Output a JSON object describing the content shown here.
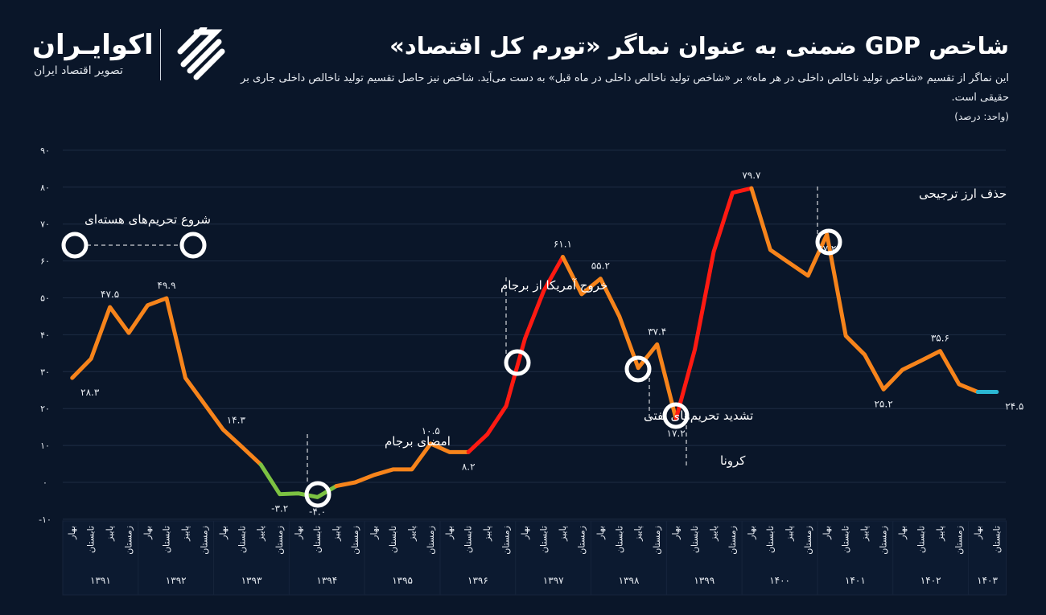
{
  "header": {
    "title": "شاخص GDP ضمنی به عنوان نماگر «تورم کل اقتصاد»",
    "description": "این نماگر از تقسیم «شاخص تولید ناخالص داخلی در هر ماه» بر «شاخص تولید ناخالص داخلی در ماه قبل» به دست می‌آید. شاخص نیز حاصل تقسیم تولید ناخالص داخلی جاری بر حقیقی است.",
    "unit": "(واحد: درصد)"
  },
  "logo": {
    "name": "اکوایـران",
    "tagline": "تصویر اقتصاد ایران"
  },
  "colors": {
    "background": "#0a1629",
    "orange": "#f7841b",
    "red": "#ff1a12",
    "green": "#7cc242",
    "cyan": "#2bb7d3",
    "grid": "#1e2c44"
  },
  "chart_data": {
    "type": "line",
    "title": "شاخص GDP ضمنی به عنوان نماگر «تورم کل اقتصاد»",
    "ylabel": "",
    "xlabel": "",
    "ylim": [
      -10,
      90
    ],
    "yticks": [
      -10,
      0,
      10,
      20,
      30,
      40,
      50,
      60,
      70,
      80,
      90
    ],
    "ytick_labels": [
      "-۱۰",
      "۰",
      "۱۰",
      "۲۰",
      "۳۰",
      "۴۰",
      "۵۰",
      "۶۰",
      "۷۰",
      "۸۰",
      "۹۰"
    ],
    "grid": true,
    "quarters": [
      "بهار",
      "تابستان",
      "پاییز",
      "زمستان"
    ],
    "years": [
      "۱۳۹۱",
      "۱۳۹۲",
      "۱۳۹۳",
      "۱۳۹۴",
      "۱۳۹۵",
      "۱۳۹۶",
      "۱۳۹۷",
      "۱۳۹۸",
      "۱۳۹۹",
      "۱۴۰۰",
      "۱۴۰۱",
      "۱۴۰۲",
      "۱۴۰۳"
    ],
    "quarters_per_year": [
      4,
      4,
      4,
      4,
      4,
      4,
      4,
      4,
      4,
      4,
      4,
      4,
      2
    ],
    "values": [
      28.3,
      33.5,
      47.5,
      40.5,
      48.0,
      49.9,
      28.3,
      21.3,
      14.3,
      9.6,
      4.8,
      -3.2,
      -3.0,
      -4.0,
      -1.0,
      0.0,
      2.0,
      3.5,
      3.5,
      10.5,
      8.2,
      8.2,
      13.0,
      20.7,
      39.0,
      52.0,
      61.1,
      51.0,
      55.2,
      45.0,
      31.0,
      37.4,
      17.2,
      36.0,
      62.5,
      78.5,
      79.7,
      63.0,
      59.5,
      56.0,
      67.2,
      39.7,
      34.6,
      25.2,
      30.5,
      33.0,
      35.6,
      26.6,
      24.5,
      24.5
    ],
    "segment_colors": [
      {
        "from": 0,
        "to": 10,
        "color": "#f7841b"
      },
      {
        "from": 10,
        "to": 14,
        "color": "#7cc242"
      },
      {
        "from": 14,
        "to": 21,
        "color": "#f7841b"
      },
      {
        "from": 21,
        "to": 26,
        "color": "#ff1a12"
      },
      {
        "from": 26,
        "to": 32,
        "color": "#f7841b"
      },
      {
        "from": 32,
        "to": 36,
        "color": "#ff1a12"
      },
      {
        "from": 36,
        "to": 48,
        "color": "#f7841b"
      },
      {
        "from": 48,
        "to": 49,
        "color": "#2bb7d3"
      }
    ],
    "data_labels": [
      {
        "index": 0,
        "text": "۲۸.۳",
        "pos": "below-right"
      },
      {
        "index": 2,
        "text": "۴۷.۵",
        "pos": "above"
      },
      {
        "index": 5,
        "text": "۴۹.۹",
        "pos": "above"
      },
      {
        "index": 8,
        "text": "۱۴.۳",
        "pos": "above-right"
      },
      {
        "index": 11,
        "text": "-۳.۲",
        "pos": "below"
      },
      {
        "index": 13,
        "text": "-۴.۰",
        "pos": "below"
      },
      {
        "index": 19,
        "text": "۱۰.۵",
        "pos": "above"
      },
      {
        "index": 21,
        "text": "۸.۲",
        "pos": "below"
      },
      {
        "index": 26,
        "text": "۶۱.۱",
        "pos": "above"
      },
      {
        "index": 28,
        "text": "۵۵.۲",
        "pos": "above"
      },
      {
        "index": 31,
        "text": "۳۷.۴",
        "pos": "above"
      },
      {
        "index": 32,
        "text": "۱۷.۲",
        "pos": "below"
      },
      {
        "index": 36,
        "text": "۷۹.۷",
        "pos": "above"
      },
      {
        "index": 40,
        "text": "۶۷.۲",
        "pos": "below"
      },
      {
        "index": 43,
        "text": "۲۵.۲",
        "pos": "below"
      },
      {
        "index": 46,
        "text": "۳۵.۶",
        "pos": "above"
      },
      {
        "index": 49,
        "text": "۲۴.۵",
        "pos": "below-right"
      }
    ],
    "annotations": [
      {
        "text": "شروع تحریم‌های هسته‌ای"
      },
      {
        "text": "امضای برجام",
        "index": 13
      },
      {
        "text": "خروج آمریکا از برجام",
        "index": 24
      },
      {
        "text": "تشدید تحریم‌های نفتی",
        "index": 30
      },
      {
        "text": "کرونا",
        "index": 32
      },
      {
        "text": "حذف ارز ترجیحی",
        "index": 40
      }
    ]
  }
}
